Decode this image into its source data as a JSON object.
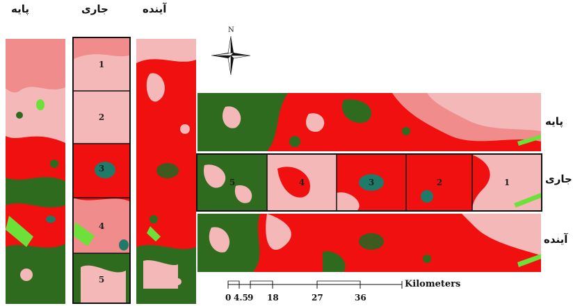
{
  "scenario_labels": {
    "base": "پایه",
    "current": "جاری",
    "future": "آینده"
  },
  "zones": [
    "1",
    "2",
    "3",
    "4",
    "5"
  ],
  "north_label": "N",
  "scale_bar": {
    "ticks": [
      "0",
      "4.5",
      "9",
      "18",
      "27",
      "36"
    ],
    "unit": "Kilometers"
  },
  "colors": {
    "light_pink": "#f4b8b8",
    "pink": "#f08c8c",
    "red": "#f01010",
    "dark_green": "#2e6b1e",
    "bright_green": "#6ee03a",
    "teal": "#1f7a6a",
    "olive": "#3e5a1e"
  }
}
